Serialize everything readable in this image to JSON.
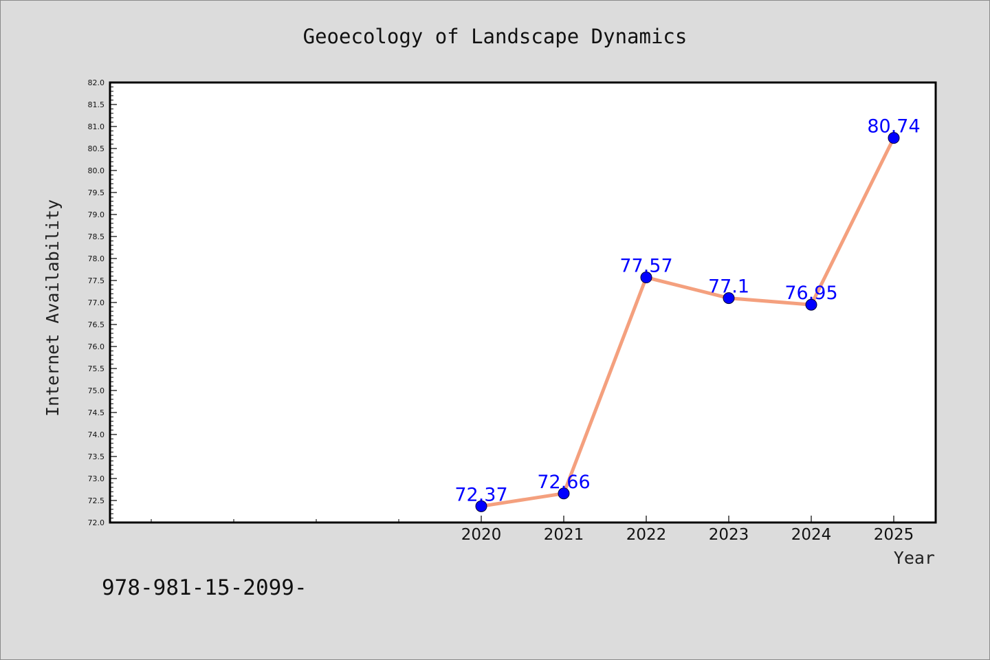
{
  "chart_data": {
    "type": "line",
    "title": "Geoecology of Landscape Dynamics",
    "xlabel": "Year",
    "ylabel": "Internet Availability",
    "categories": [
      "2020",
      "2021",
      "2022",
      "2023",
      "2024",
      "2025"
    ],
    "series": [
      {
        "values": [
          72.37,
          72.66,
          77.57,
          77.1,
          76.95,
          80.74
        ],
        "data_labels": [
          "72.37",
          "72.66",
          "77.57",
          "77.1",
          "76.95",
          "80.74"
        ],
        "line_color": "#f4a07e",
        "marker_color": "#0000ff"
      }
    ],
    "ylim": [
      72.0,
      82.0
    ],
    "yticks": [
      "72.0",
      "72.5",
      "73.0",
      "73.5",
      "74.0",
      "74.5",
      "75.0",
      "75.5",
      "76.0",
      "76.5",
      "77.0",
      "77.5",
      "78.0",
      "78.5",
      "79.0",
      "79.5",
      "80.0",
      "80.5",
      "81.0",
      "81.5",
      "82.0"
    ],
    "grid": false,
    "legend": "none"
  },
  "footer": {
    "text": "978-981-15-2099-"
  },
  "colors": {
    "background": "#dcdcdc",
    "plot_area": "#ffffff",
    "line": "#f4a07e",
    "marker": "#0000ff",
    "data_label": "#0000ff"
  }
}
